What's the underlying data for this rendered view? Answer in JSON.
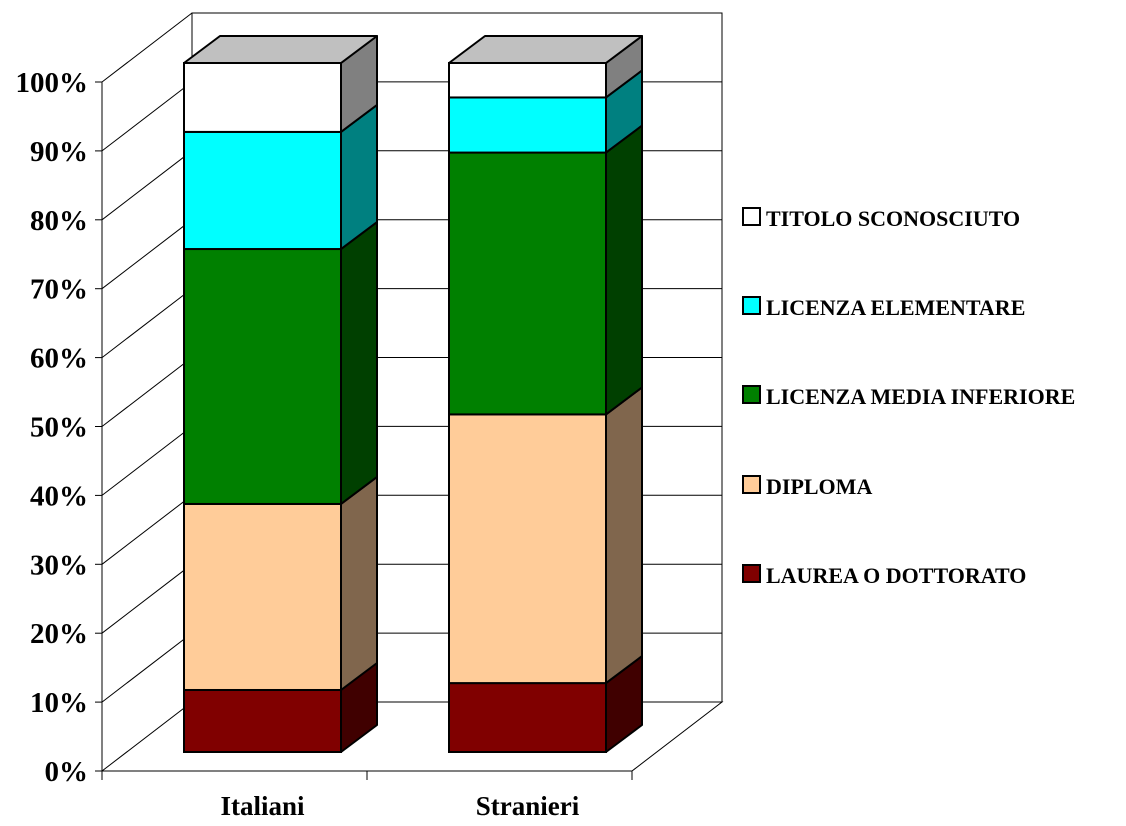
{
  "chart_data": {
    "type": "bar",
    "stacked": true,
    "percent_stacked": true,
    "three_d": true,
    "categories": [
      "Italiani",
      "Stranieri"
    ],
    "series": [
      {
        "name": "LAUREA O DOTTORATO",
        "values": [
          9,
          10
        ],
        "color": "#800000"
      },
      {
        "name": "DIPLOMA",
        "values": [
          27,
          39
        ],
        "color": "#FFCC99"
      },
      {
        "name": "LICENZA MEDIA INFERIORE",
        "values": [
          37,
          38
        ],
        "color": "#008000"
      },
      {
        "name": "LICENZA ELEMENTARE",
        "values": [
          17,
          8
        ],
        "color": "#00FFFF"
      },
      {
        "name": "TITOLO SCONOSCIUTO",
        "values": [
          10,
          5
        ],
        "color": "#FFFFFF"
      }
    ],
    "y_ticks": [
      "0%",
      "10%",
      "20%",
      "30%",
      "40%",
      "50%",
      "60%",
      "70%",
      "80%",
      "90%",
      "100%"
    ],
    "ylim": [
      0,
      100
    ],
    "grid": true,
    "legend_position": "right",
    "title": "",
    "xlabel": "",
    "ylabel": ""
  }
}
